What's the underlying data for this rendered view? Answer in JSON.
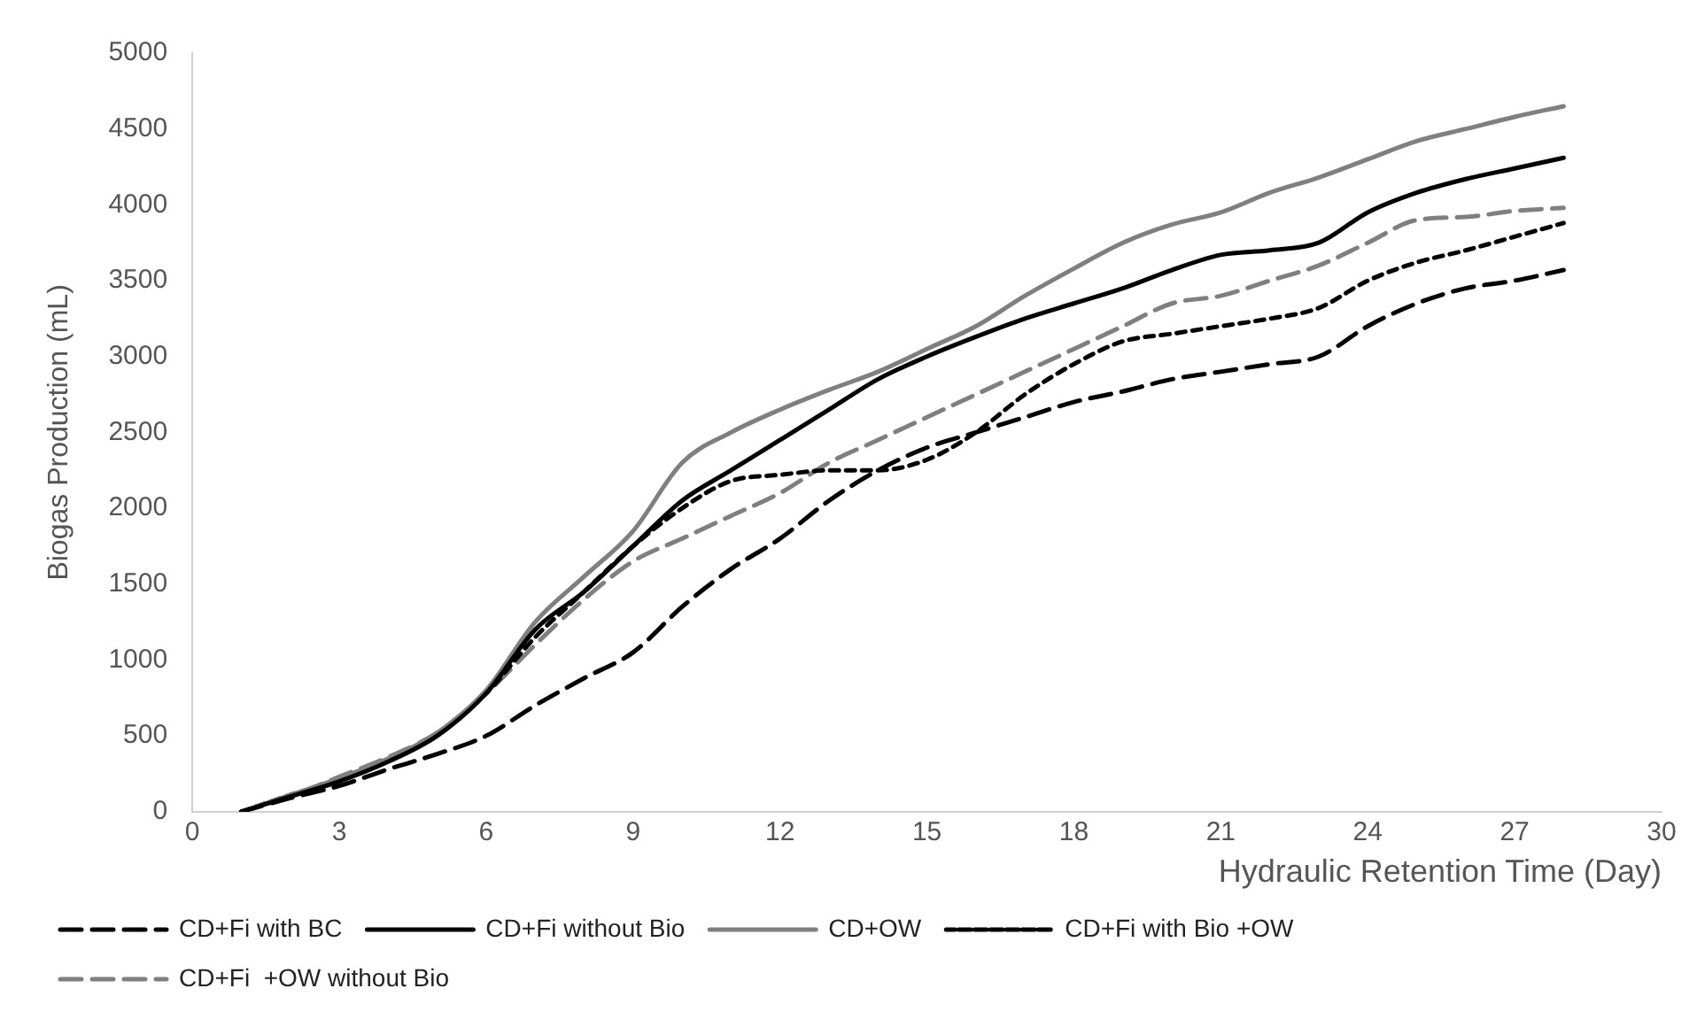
{
  "chart_data": {
    "type": "line",
    "xlabel": "Hydraulic Retention Time (Day)",
    "ylabel": "Biogas Production (mL)",
    "x": [
      1,
      2,
      3,
      4,
      5,
      6,
      7,
      8,
      9,
      10,
      11,
      12,
      13,
      14,
      15,
      16,
      17,
      18,
      19,
      20,
      21,
      22,
      23,
      24,
      25,
      26,
      27,
      28
    ],
    "xlim": [
      0,
      30
    ],
    "xticks": [
      0,
      3,
      6,
      9,
      12,
      15,
      18,
      21,
      24,
      27,
      30
    ],
    "ylim": [
      0,
      5000
    ],
    "yticks": [
      0,
      500,
      1000,
      1500,
      2000,
      2500,
      3000,
      3500,
      4000,
      4500,
      5000
    ],
    "grid": false,
    "legend": "bottom",
    "marker": "none",
    "series": [
      {
        "name": "CD+Fi with BC",
        "color": "#000000",
        "line_style": "dashed",
        "values": [
          0,
          90,
          170,
          280,
          380,
          500,
          700,
          880,
          1050,
          1350,
          1600,
          1800,
          2050,
          2250,
          2400,
          2500,
          2600,
          2700,
          2770,
          2850,
          2900,
          2950,
          3000,
          3200,
          3350,
          3450,
          3500,
          3570
        ]
      },
      {
        "name": "CD+Fi without Bio",
        "color": "#000000",
        "line_style": "solid",
        "values": [
          0,
          100,
          200,
          330,
          500,
          780,
          1200,
          1450,
          1750,
          2050,
          2250,
          2450,
          2650,
          2850,
          3000,
          3130,
          3250,
          3350,
          3450,
          3570,
          3670,
          3700,
          3750,
          3950,
          4080,
          4170,
          4240,
          4310
        ]
      },
      {
        "name": "CD+OW",
        "color": "#7f7f7f",
        "line_style": "solid",
        "values": [
          0,
          110,
          220,
          350,
          520,
          800,
          1250,
          1550,
          1850,
          2300,
          2500,
          2650,
          2780,
          2900,
          3050,
          3200,
          3400,
          3580,
          3750,
          3870,
          3950,
          4080,
          4180,
          4300,
          4420,
          4500,
          4580,
          4650
        ]
      },
      {
        "name": "CD+Fi with Bio +OW",
        "color": "#000000",
        "line_style": "dotted",
        "values": [
          0,
          110,
          210,
          340,
          510,
          780,
          1150,
          1450,
          1750,
          2000,
          2180,
          2220,
          2250,
          2250,
          2320,
          2500,
          2750,
          2950,
          3100,
          3150,
          3200,
          3250,
          3320,
          3500,
          3620,
          3700,
          3790,
          3880
        ]
      },
      {
        "name": "CD+Fi  +OW without Bio",
        "color": "#7f7f7f",
        "line_style": "dashed",
        "values": [
          0,
          100,
          230,
          360,
          520,
          780,
          1100,
          1400,
          1650,
          1800,
          1950,
          2100,
          2300,
          2450,
          2600,
          2750,
          2900,
          3050,
          3200,
          3350,
          3400,
          3500,
          3600,
          3750,
          3900,
          3920,
          3960,
          3980
        ]
      }
    ]
  }
}
